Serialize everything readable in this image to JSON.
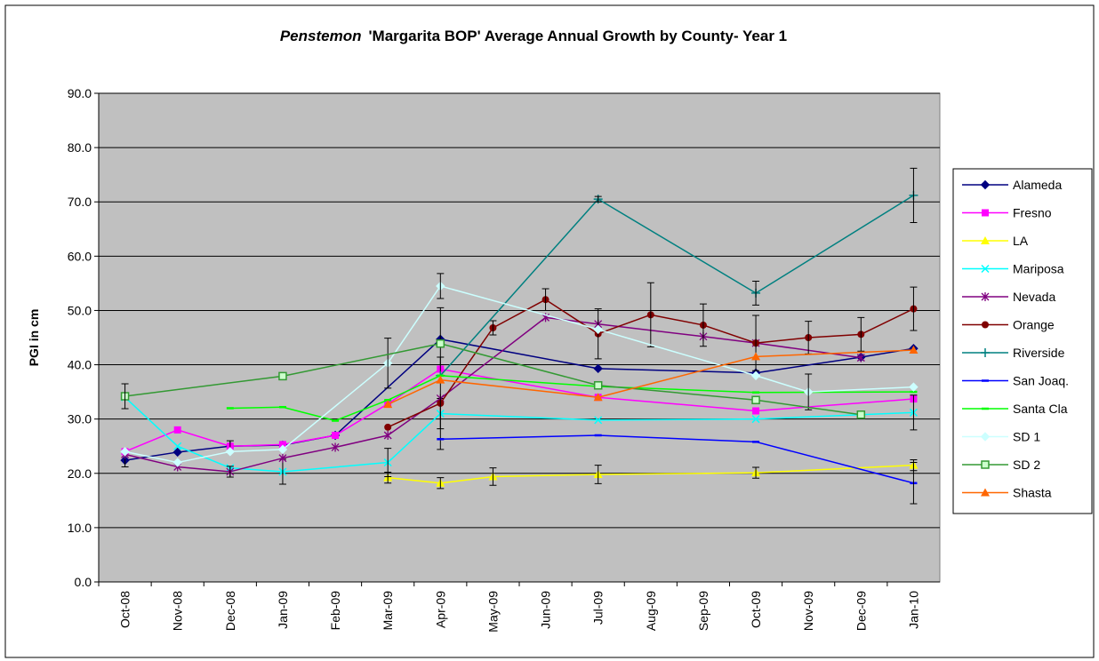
{
  "chart_data": {
    "type": "line",
    "title": {
      "italic": "Penstemon",
      "rest": "'Margarita BOP' Average Annual Growth by County- Year 1"
    },
    "y_label": "PGI  in cm",
    "categories": [
      "Oct-08",
      "Nov-08",
      "Dec-08",
      "Jan-09",
      "Feb-09",
      "Mar-09",
      "Apr-09",
      "May-09",
      "Jun-09",
      "Jul-09",
      "Aug-09",
      "Sep-09",
      "Oct-09",
      "Nov-09",
      "Dec-09",
      "Jan-10"
    ],
    "ylim": [
      0,
      90
    ],
    "yticks": [
      {
        "value": 0,
        "label": "0.0"
      },
      {
        "value": 10,
        "label": "10.0"
      },
      {
        "value": 20,
        "label": "20.0"
      },
      {
        "value": 30,
        "label": "30.0"
      },
      {
        "value": 40,
        "label": "40.0"
      },
      {
        "value": 50,
        "label": "50.0"
      },
      {
        "value": 60,
        "label": "60.0"
      },
      {
        "value": 70,
        "label": "70.0"
      },
      {
        "value": 80,
        "label": "80.0"
      },
      {
        "value": 90,
        "label": "90.0"
      }
    ],
    "grid": true,
    "connect_gaps": true,
    "legend": "right",
    "plot_color": "#c0c0c0",
    "series": [
      {
        "name": "Alameda",
        "color": "#000080",
        "marker": "diamond",
        "values": [
          22.4,
          23.9,
          25.0,
          25.2,
          27.0,
          null,
          44.7,
          null,
          null,
          39.3,
          null,
          null,
          38.5,
          null,
          41.4,
          43.0
        ],
        "errors": [
          1.2,
          null,
          null,
          null,
          null,
          null,
          5.8,
          null,
          null,
          null,
          null,
          null,
          null,
          null,
          null,
          null
        ]
      },
      {
        "name": "Fresno",
        "color": "#ff00ff",
        "marker": "square",
        "values": [
          24.0,
          28.0,
          25.0,
          25.3,
          27.0,
          32.8,
          39.2,
          null,
          null,
          34.0,
          null,
          null,
          31.5,
          null,
          null,
          33.7
        ],
        "errors": [
          null,
          null,
          1.0,
          null,
          null,
          null,
          null,
          null,
          null,
          null,
          null,
          null,
          null,
          null,
          null,
          null
        ]
      },
      {
        "name": "LA",
        "color": "#ffff00",
        "marker": "triangle",
        "values": [
          null,
          null,
          null,
          null,
          null,
          19.2,
          18.2,
          19.4,
          null,
          19.8,
          null,
          null,
          20.1,
          null,
          null,
          21.5
        ],
        "errors": [
          null,
          null,
          null,
          null,
          null,
          1.0,
          1.0,
          1.6,
          null,
          1.7,
          null,
          null,
          1.0,
          null,
          null,
          1.0
        ]
      },
      {
        "name": "Mariposa",
        "color": "#00ffff",
        "marker": "x",
        "values": [
          34.0,
          25.0,
          21.0,
          20.3,
          null,
          22.0,
          31.0,
          null,
          null,
          29.8,
          null,
          null,
          30.0,
          null,
          null,
          31.2
        ],
        "errors": [
          null,
          null,
          null,
          2.3,
          null,
          2.6,
          2.8,
          null,
          null,
          null,
          null,
          null,
          null,
          null,
          null,
          3.2
        ]
      },
      {
        "name": "Nevada",
        "color": "#800080",
        "marker": "star",
        "values": [
          23.5,
          21.2,
          20.3,
          22.8,
          24.8,
          27.0,
          33.8,
          null,
          48.7,
          47.5,
          null,
          45.2,
          44.0,
          null,
          41.3,
          null
        ],
        "errors": [
          null,
          null,
          1.0,
          null,
          null,
          null,
          null,
          null,
          null,
          null,
          null,
          null,
          null,
          null,
          null,
          null
        ]
      },
      {
        "name": "Orange",
        "color": "#800000",
        "marker": "circle",
        "values": [
          null,
          null,
          null,
          null,
          null,
          28.5,
          32.9,
          46.8,
          52.0,
          45.7,
          49.2,
          47.3,
          44.0,
          45.0,
          45.6,
          50.3
        ],
        "errors": [
          null,
          null,
          null,
          null,
          null,
          null,
          8.5,
          1.3,
          2.0,
          4.6,
          5.9,
          3.9,
          5.1,
          3.0,
          3.1,
          4.0
        ]
      },
      {
        "name": "Riverside",
        "color": "#008080",
        "marker": "plus",
        "values": [
          null,
          null,
          null,
          null,
          null,
          null,
          38.0,
          null,
          null,
          70.5,
          null,
          null,
          53.2,
          null,
          null,
          71.2
        ],
        "errors": [
          null,
          null,
          null,
          null,
          null,
          null,
          null,
          null,
          null,
          0.5,
          null,
          null,
          2.2,
          null,
          null,
          5.0
        ]
      },
      {
        "name": "San Joaq.",
        "color": "#0000ff",
        "marker": "dash",
        "values": [
          null,
          null,
          null,
          null,
          null,
          null,
          26.3,
          null,
          null,
          27.0,
          null,
          null,
          25.8,
          null,
          null,
          18.2
        ],
        "errors": [
          null,
          null,
          null,
          null,
          null,
          null,
          null,
          null,
          null,
          null,
          null,
          null,
          null,
          null,
          null,
          3.8
        ]
      },
      {
        "name": "Santa Cla",
        "color": "#00ff00",
        "marker": "dash",
        "values": [
          null,
          null,
          32.0,
          32.2,
          29.7,
          33.5,
          38.0,
          null,
          null,
          36.0,
          null,
          null,
          34.9,
          null,
          null,
          35.0
        ],
        "errors": [
          null,
          null,
          null,
          null,
          null,
          null,
          null,
          null,
          null,
          null,
          null,
          null,
          null,
          null,
          null,
          null
        ]
      },
      {
        "name": "SD 1",
        "color": "#ccffff",
        "marker": "diamond",
        "values": [
          24.0,
          22.0,
          24.0,
          24.4,
          null,
          40.3,
          54.5,
          null,
          null,
          46.5,
          null,
          null,
          38.0,
          35.0,
          null,
          35.9
        ],
        "errors": [
          null,
          null,
          null,
          null,
          null,
          4.6,
          2.3,
          null,
          null,
          null,
          null,
          null,
          null,
          3.3,
          null,
          null
        ]
      },
      {
        "name": "SD 2",
        "color": "#339933",
        "marker": "open-square",
        "values": [
          34.2,
          null,
          null,
          37.9,
          null,
          null,
          43.9,
          null,
          null,
          36.2,
          null,
          null,
          33.5,
          null,
          30.8,
          null
        ],
        "errors": [
          2.3,
          null,
          null,
          null,
          null,
          null,
          null,
          null,
          null,
          null,
          null,
          null,
          null,
          null,
          null,
          null
        ]
      },
      {
        "name": "Shasta",
        "color": "#ff6600",
        "marker": "triangle",
        "values": [
          null,
          null,
          null,
          null,
          null,
          32.7,
          37.2,
          null,
          null,
          34.0,
          null,
          null,
          41.5,
          null,
          null,
          42.7
        ],
        "errors": [
          null,
          null,
          null,
          null,
          null,
          null,
          null,
          null,
          null,
          null,
          null,
          null,
          null,
          null,
          null,
          null
        ]
      }
    ]
  }
}
